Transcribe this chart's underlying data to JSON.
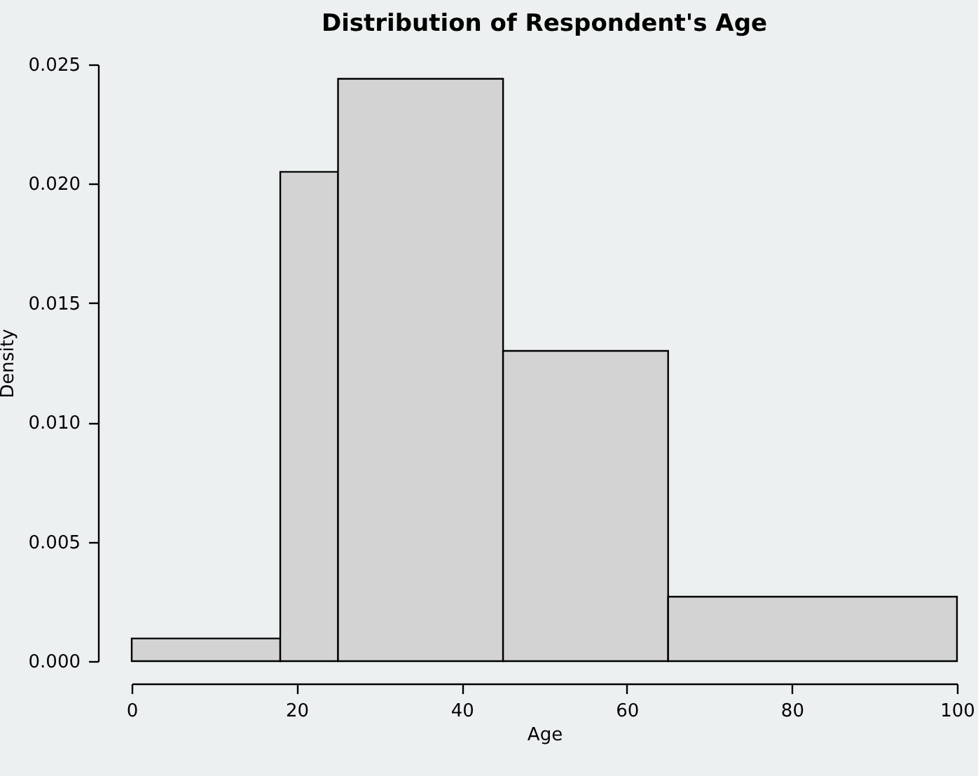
{
  "chart_data": {
    "type": "histogram",
    "title": "Distribution of Respondent's Age",
    "xlabel": "Age",
    "ylabel": "Density",
    "bins": [
      0,
      18,
      25,
      45,
      65,
      100
    ],
    "values": [
      0.00095,
      0.0205,
      0.0244,
      0.013,
      0.0027
    ],
    "color": "#d3d3d3",
    "xlim": [
      0,
      100
    ],
    "xticks": [
      0,
      20,
      40,
      60,
      80,
      100
    ],
    "ylim": [
      0,
      0.025
    ],
    "yticks": [
      {
        "value": 0,
        "label": "0.000"
      },
      {
        "value": 0.005,
        "label": "0.005"
      },
      {
        "value": 0.01,
        "label": "0.010"
      },
      {
        "value": 0.015,
        "label": "0.015"
      },
      {
        "value": 0.02,
        "label": "0.020"
      },
      {
        "value": 0.025,
        "label": "0.025"
      }
    ]
  }
}
